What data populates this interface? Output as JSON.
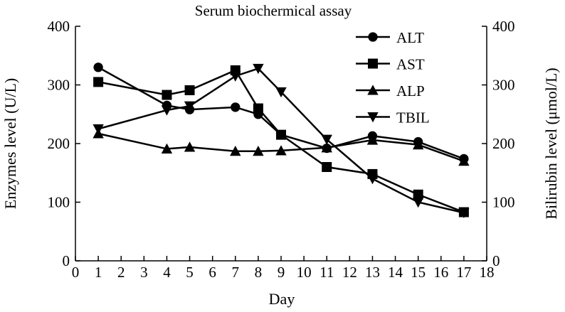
{
  "chart_data": {
    "type": "line",
    "title": "Serum biochermical assay",
    "xlabel": "Day",
    "ylabel": "Enzymes level (U/L)",
    "y2label": "Bilirubin level (μmol/L)",
    "xlim": [
      0,
      18
    ],
    "ylim": [
      0,
      400
    ],
    "y2lim": [
      0,
      400
    ],
    "xticks": [
      "0",
      "1",
      "2",
      "3",
      "4",
      "5",
      "6",
      "7",
      "8",
      "9",
      "10",
      "11",
      "12",
      "13",
      "14",
      "15",
      "16",
      "17",
      "18"
    ],
    "yticks": [
      "0",
      "100",
      "200",
      "300",
      "400"
    ],
    "y2ticks": [
      "0",
      "100",
      "200",
      "300",
      "400"
    ],
    "legend_position": "top-right",
    "grid": false,
    "series": [
      {
        "name": "ALT",
        "marker": "circle",
        "x": [
          1,
          4,
          5,
          7,
          8,
          9,
          11,
          13,
          15,
          17
        ],
        "y": [
          330,
          265,
          258,
          262,
          250,
          215,
          192,
          213,
          203,
          174
        ]
      },
      {
        "name": "AST",
        "marker": "square",
        "x": [
          1,
          4,
          5,
          7,
          8,
          9,
          11,
          13,
          15,
          17
        ],
        "y": [
          305,
          283,
          291,
          325,
          260,
          215,
          160,
          148,
          113,
          83
        ]
      },
      {
        "name": "ALP",
        "marker": "triangle-up",
        "x": [
          1,
          4,
          5,
          7,
          8,
          9,
          11,
          13,
          15,
          17
        ],
        "y": [
          217,
          191,
          194,
          187,
          187,
          188,
          193,
          206,
          198,
          170
        ]
      },
      {
        "name": "TBIL",
        "marker": "triangle-down",
        "x": [
          1,
          4,
          5,
          7,
          8,
          9,
          11,
          13,
          15,
          17
        ],
        "y": [
          225,
          257,
          264,
          315,
          328,
          288,
          207,
          140,
          100,
          82
        ]
      }
    ]
  }
}
